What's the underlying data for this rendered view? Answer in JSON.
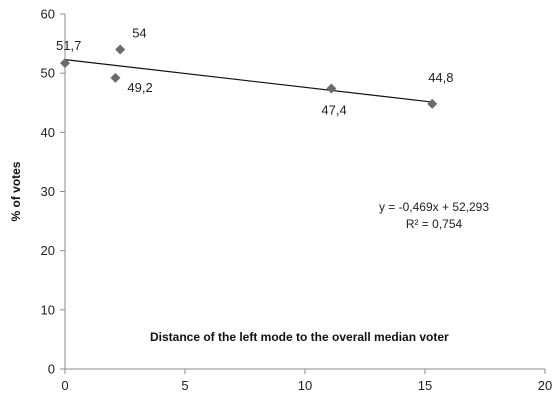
{
  "chart_data": {
    "type": "scatter",
    "title": "",
    "xlabel": "Distance of the left mode to the overall median voter",
    "ylabel": "% of votes",
    "xlim": [
      0,
      20
    ],
    "ylim": [
      0,
      60
    ],
    "x_ticks": [
      0,
      5,
      10,
      15,
      20
    ],
    "y_ticks": [
      0,
      10,
      20,
      30,
      40,
      50,
      60
    ],
    "grid": false,
    "legend": "none",
    "series": [
      {
        "color": "#6b6b6b",
        "marker": "diamond",
        "points": [
          {
            "x": 0.0,
            "y": 51.7,
            "label": "51,7"
          },
          {
            "x": 2.3,
            "y": 54.0,
            "label": "54"
          },
          {
            "x": 2.1,
            "y": 49.2,
            "label": "49,2"
          },
          {
            "x": 11.1,
            "y": 47.4,
            "label": "47,4"
          },
          {
            "x": 15.3,
            "y": 44.8,
            "label": "44,8"
          }
        ]
      }
    ],
    "trendline": {
      "type": "linear",
      "slope": -0.469,
      "intercept": 52.293,
      "x_range": [
        0,
        15.3
      ],
      "equation_text": "y = -0,469x + 52,293",
      "r2_text": "R² = 0,754"
    }
  }
}
